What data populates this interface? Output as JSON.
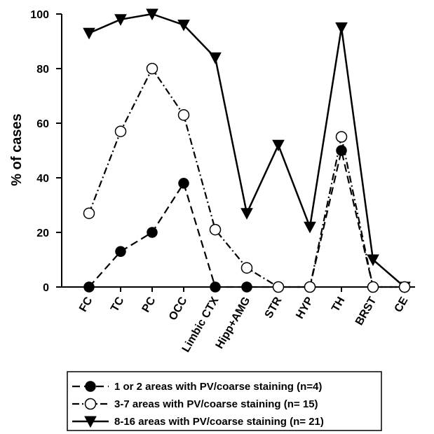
{
  "chart_data": {
    "type": "line",
    "ylabel": "% of cases",
    "xlabel": "",
    "ylim": [
      0,
      100
    ],
    "yticks": [
      0,
      20,
      40,
      60,
      80,
      100
    ],
    "grid": false,
    "legend_position": "bottom",
    "categories": [
      "FC",
      "TC",
      "PC",
      "OCC",
      "Limbic CTX",
      "Hipp+AMG",
      "STR",
      "HYP",
      "TH",
      "BRST",
      "CE"
    ],
    "series": [
      {
        "name": "1 or 2 areas with PV/coarse staining (n=4)",
        "marker": "filled-circle",
        "line_style": "dashed",
        "color": "#000000",
        "values": [
          0,
          13,
          20,
          38,
          0,
          0,
          0,
          0,
          50,
          0,
          0
        ]
      },
      {
        "name": "3-7 areas with  PV/coarse staining (n= 15)",
        "marker": "open-circle",
        "line_style": "dash-dot",
        "color": "#000000",
        "values": [
          27,
          57,
          80,
          63,
          21,
          7,
          0,
          0,
          55,
          0,
          0
        ]
      },
      {
        "name": "8-16 areas with PV/coarse staining (n= 21)",
        "marker": "filled-triangle-down",
        "line_style": "solid",
        "color": "#000000",
        "values": [
          93,
          98,
          100,
          96,
          84,
          27,
          52,
          22,
          95,
          10,
          0
        ]
      }
    ]
  }
}
